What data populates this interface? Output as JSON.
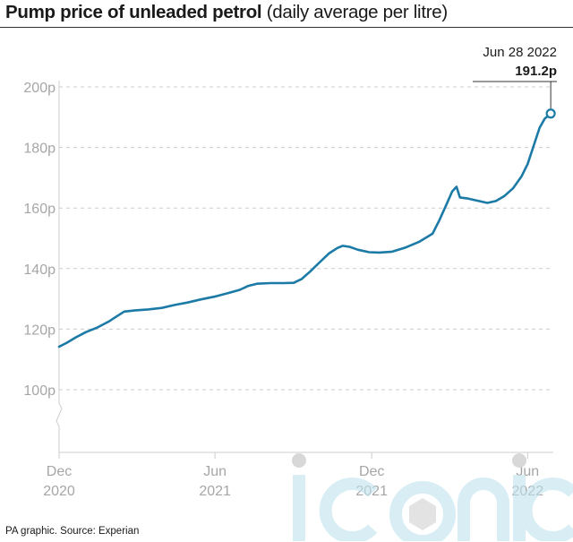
{
  "title": {
    "bold": "Pump price of unleaded petrol",
    "rest": "(daily average per litre)"
  },
  "source": "PA graphic. Source: Experian",
  "watermark": "iconic",
  "colors": {
    "line": "#1c7aa6",
    "grid": "#cccccc",
    "axis_text": "#a6a6a6",
    "text": "#1a1a1a"
  },
  "chart_data": {
    "type": "line",
    "title": "Pump price of unleaded petrol",
    "subtitle": "(daily average per litre)",
    "xlabel": "",
    "ylabel": "",
    "ylim": [
      80,
      200
    ],
    "yticks": [
      {
        "value": 100,
        "label": "100p"
      },
      {
        "value": 120,
        "label": "120p"
      },
      {
        "value": 140,
        "label": "140p"
      },
      {
        "value": 160,
        "label": "160p"
      },
      {
        "value": 180,
        "label": "180p"
      },
      {
        "value": 200,
        "label": "200p"
      }
    ],
    "xlim": [
      "2020-12-01",
      "2022-07-01"
    ],
    "xticks": [
      {
        "value": "2020-12-01",
        "line1": "Dec",
        "line2": "2020"
      },
      {
        "value": "2021-06-01",
        "line1": "Jun",
        "line2": "2021"
      },
      {
        "value": "2021-12-01",
        "line1": "Dec",
        "line2": "2021"
      },
      {
        "value": "2022-06-01",
        "line1": "Jun",
        "line2": "2022"
      }
    ],
    "grid": true,
    "y_axis_break": true,
    "series": [
      {
        "points": [
          [
            "2020-12-01",
            114.2
          ],
          [
            "2020-12-10",
            115.5
          ],
          [
            "2020-12-20",
            117.2
          ],
          [
            "2021-01-01",
            119.0
          ],
          [
            "2021-01-15",
            120.6
          ],
          [
            "2021-01-28",
            122.5
          ],
          [
            "2021-02-05",
            124.0
          ],
          [
            "2021-02-15",
            125.8
          ],
          [
            "2021-02-28",
            126.2
          ],
          [
            "2021-03-15",
            126.5
          ],
          [
            "2021-03-31",
            127.0
          ],
          [
            "2021-04-15",
            128.0
          ],
          [
            "2021-04-30",
            128.8
          ],
          [
            "2021-05-15",
            129.8
          ],
          [
            "2021-05-31",
            130.7
          ],
          [
            "2021-06-15",
            131.8
          ],
          [
            "2021-06-30",
            133.0
          ],
          [
            "2021-07-10",
            134.3
          ],
          [
            "2021-07-20",
            135.0
          ],
          [
            "2021-08-05",
            135.2
          ],
          [
            "2021-08-20",
            135.2
          ],
          [
            "2021-09-01",
            135.3
          ],
          [
            "2021-09-10",
            136.5
          ],
          [
            "2021-09-20",
            139.0
          ],
          [
            "2021-10-01",
            142.0
          ],
          [
            "2021-10-12",
            145.0
          ],
          [
            "2021-10-22",
            146.8
          ],
          [
            "2021-10-28",
            147.5
          ],
          [
            "2021-11-05",
            147.2
          ],
          [
            "2021-11-15",
            146.2
          ],
          [
            "2021-11-28",
            145.4
          ],
          [
            "2021-12-10",
            145.3
          ],
          [
            "2021-12-25",
            145.6
          ],
          [
            "2022-01-10",
            147.0
          ],
          [
            "2022-01-25",
            148.8
          ],
          [
            "2022-02-10",
            151.5
          ],
          [
            "2022-02-18",
            156.0
          ],
          [
            "2022-02-26",
            161.0
          ],
          [
            "2022-03-05",
            165.5
          ],
          [
            "2022-03-10",
            167.0
          ],
          [
            "2022-03-14",
            163.5
          ],
          [
            "2022-03-22",
            163.2
          ],
          [
            "2022-04-05",
            162.3
          ],
          [
            "2022-04-15",
            161.7
          ],
          [
            "2022-04-25",
            162.3
          ],
          [
            "2022-05-05",
            164.0
          ],
          [
            "2022-05-15",
            166.5
          ],
          [
            "2022-05-25",
            170.5
          ],
          [
            "2022-06-01",
            174.5
          ],
          [
            "2022-06-08",
            180.5
          ],
          [
            "2022-06-15",
            186.5
          ],
          [
            "2022-06-21",
            189.5
          ],
          [
            "2022-06-28",
            191.2
          ]
        ]
      }
    ],
    "annotation": {
      "x": "2022-06-28",
      "date_label": "Jun 28 2022",
      "value_label": "191.2p"
    }
  }
}
